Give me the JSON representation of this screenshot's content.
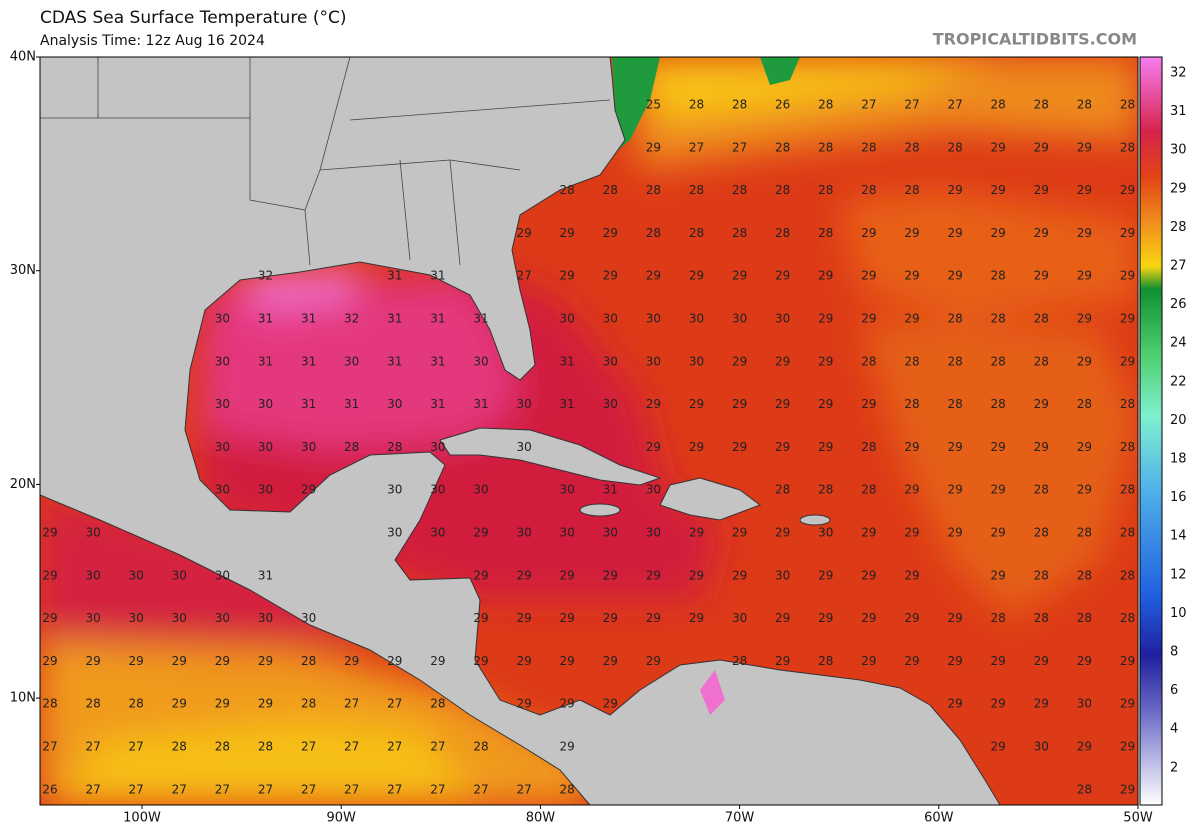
{
  "header": {
    "title": "CDAS Sea Surface Temperature (°C)",
    "subtitle": "Analysis Time: 12z Aug 16 2024",
    "watermark": "TROPICALTIDBITS.COM"
  },
  "map": {
    "lat_labels": [
      "40N",
      "30N",
      "20N",
      "10N"
    ],
    "lon_labels": [
      "100W",
      "90W",
      "80W",
      "70W",
      "60W",
      "50W"
    ],
    "colorbar_labels": [
      32,
      31,
      30,
      29,
      28,
      27,
      26,
      24,
      22,
      20,
      18,
      16,
      14,
      12,
      10,
      8,
      6,
      4,
      2
    ],
    "grid_values": [
      [
        null,
        null,
        null,
        null,
        null,
        null,
        null,
        null,
        null,
        null,
        null,
        null,
        null,
        null,
        25,
        28,
        28,
        26,
        28,
        27,
        27,
        27,
        28,
        28,
        28,
        28
      ],
      [
        null,
        null,
        null,
        null,
        null,
        null,
        null,
        null,
        null,
        null,
        null,
        null,
        null,
        null,
        29,
        27,
        27,
        28,
        28,
        28,
        28,
        28,
        29,
        29,
        29,
        28
      ],
      [
        null,
        null,
        null,
        null,
        null,
        null,
        null,
        null,
        null,
        null,
        null,
        null,
        28,
        28,
        28,
        28,
        28,
        28,
        28,
        28,
        28,
        29,
        29,
        29,
        29,
        29
      ],
      [
        null,
        null,
        null,
        null,
        null,
        null,
        null,
        null,
        null,
        null,
        null,
        29,
        29,
        29,
        28,
        28,
        28,
        28,
        28,
        29,
        29,
        29,
        29,
        29,
        29,
        29
      ],
      [
        null,
        null,
        null,
        null,
        null,
        32,
        null,
        null,
        31,
        31,
        null,
        27,
        29,
        29,
        29,
        29,
        29,
        29,
        29,
        29,
        29,
        29,
        28,
        29,
        29,
        29
      ],
      [
        null,
        null,
        null,
        null,
        30,
        31,
        31,
        32,
        31,
        31,
        31,
        null,
        30,
        30,
        30,
        30,
        30,
        30,
        29,
        29,
        29,
        28,
        28,
        28,
        29,
        29
      ],
      [
        null,
        null,
        null,
        null,
        30,
        31,
        31,
        30,
        31,
        31,
        30,
        null,
        31,
        30,
        30,
        30,
        29,
        29,
        29,
        28,
        28,
        28,
        28,
        28,
        29,
        29
      ],
      [
        null,
        null,
        null,
        null,
        30,
        30,
        31,
        31,
        30,
        31,
        31,
        30,
        31,
        30,
        29,
        29,
        29,
        29,
        29,
        29,
        28,
        28,
        28,
        29,
        28,
        28
      ],
      [
        null,
        null,
        null,
        null,
        30,
        30,
        30,
        28,
        28,
        30,
        null,
        30,
        null,
        null,
        29,
        29,
        29,
        29,
        29,
        28,
        29,
        29,
        29,
        29,
        29,
        28
      ],
      [
        null,
        null,
        null,
        null,
        30,
        30,
        29,
        null,
        30,
        30,
        30,
        null,
        30,
        31,
        30,
        null,
        null,
        28,
        28,
        28,
        29,
        29,
        29,
        28,
        29,
        28
      ],
      [
        29,
        30,
        null,
        null,
        null,
        null,
        null,
        null,
        30,
        30,
        29,
        30,
        30,
        30,
        30,
        29,
        29,
        29,
        30,
        29,
        29,
        29,
        29,
        28,
        28,
        28
      ],
      [
        29,
        30,
        30,
        30,
        30,
        31,
        null,
        null,
        null,
        null,
        29,
        29,
        29,
        29,
        29,
        29,
        29,
        30,
        29,
        29,
        29,
        null,
        29,
        28,
        28,
        28
      ],
      [
        29,
        30,
        30,
        30,
        30,
        30,
        30,
        null,
        null,
        null,
        29,
        29,
        29,
        29,
        29,
        29,
        30,
        29,
        29,
        29,
        29,
        29,
        28,
        28,
        28,
        28
      ],
      [
        29,
        29,
        29,
        29,
        29,
        29,
        28,
        29,
        29,
        29,
        29,
        29,
        29,
        29,
        29,
        null,
        28,
        29,
        28,
        29,
        29,
        29,
        29,
        29,
        29,
        29
      ],
      [
        28,
        28,
        28,
        29,
        29,
        29,
        28,
        27,
        27,
        28,
        null,
        29,
        29,
        29,
        null,
        null,
        null,
        null,
        null,
        null,
        null,
        29,
        29,
        29,
        30,
        29
      ],
      [
        27,
        27,
        27,
        28,
        28,
        28,
        27,
        27,
        27,
        27,
        28,
        null,
        29,
        null,
        null,
        null,
        null,
        null,
        null,
        null,
        null,
        null,
        29,
        30,
        29,
        29
      ],
      [
        26,
        27,
        27,
        27,
        27,
        27,
        27,
        27,
        27,
        27,
        27,
        27,
        28,
        null,
        null,
        null,
        null,
        null,
        null,
        null,
        null,
        null,
        null,
        null,
        28,
        29
      ]
    ]
  }
}
